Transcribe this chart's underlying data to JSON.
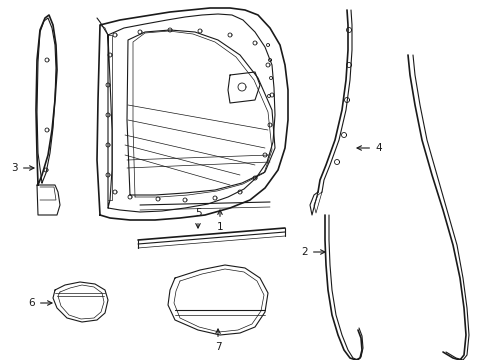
{
  "bg_color": "#ffffff",
  "line_color": "#1a1a1a",
  "lw_thick": 1.2,
  "lw_med": 0.8,
  "lw_thin": 0.5,
  "figw": 4.9,
  "figh": 3.6,
  "dpi": 100
}
